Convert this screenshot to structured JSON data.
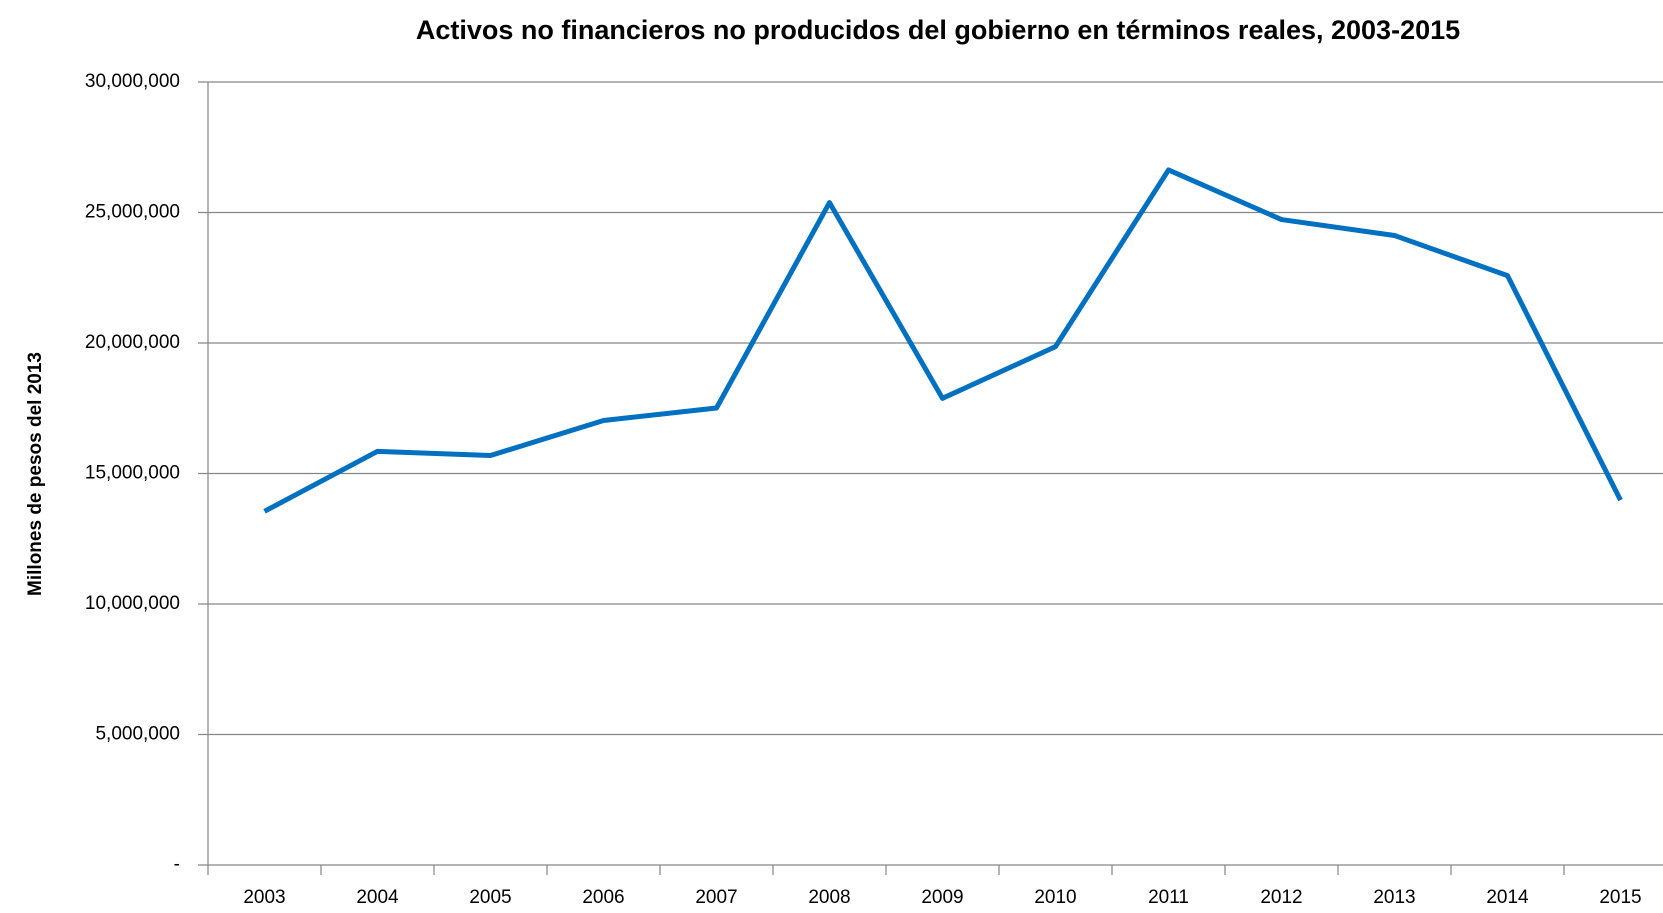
{
  "chart_data": {
    "type": "line",
    "title": "Activos no financieros no producidos del gobierno en términos reales, 2003-2015",
    "y_label": "Millones de pesos del 2013",
    "categories": [
      "2003",
      "2004",
      "2005",
      "2006",
      "2007",
      "2008",
      "2009",
      "2010",
      "2011",
      "2012",
      "2013",
      "2014",
      "2015"
    ],
    "series": [
      {
        "name": "Activos no financieros no producidos",
        "color": "#0070c0",
        "values": [
          13550000,
          15850000,
          15690000,
          17030000,
          17510000,
          25380000,
          17880000,
          19860000,
          26630000,
          24730000,
          24120000,
          22580000,
          13980000
        ]
      }
    ],
    "ylim": [
      0,
      30000000
    ],
    "yticks": [
      {
        "value": 0,
        "label": "-"
      },
      {
        "value": 5000000,
        "label": "5,000,000"
      },
      {
        "value": 10000000,
        "label": "10,000,000"
      },
      {
        "value": 15000000,
        "label": "15,000,000"
      },
      {
        "value": 20000000,
        "label": "20,000,000"
      },
      {
        "value": 25000000,
        "label": "25,000,000"
      },
      {
        "value": 30000000,
        "label": "30,000,000"
      }
    ],
    "grid": true
  }
}
